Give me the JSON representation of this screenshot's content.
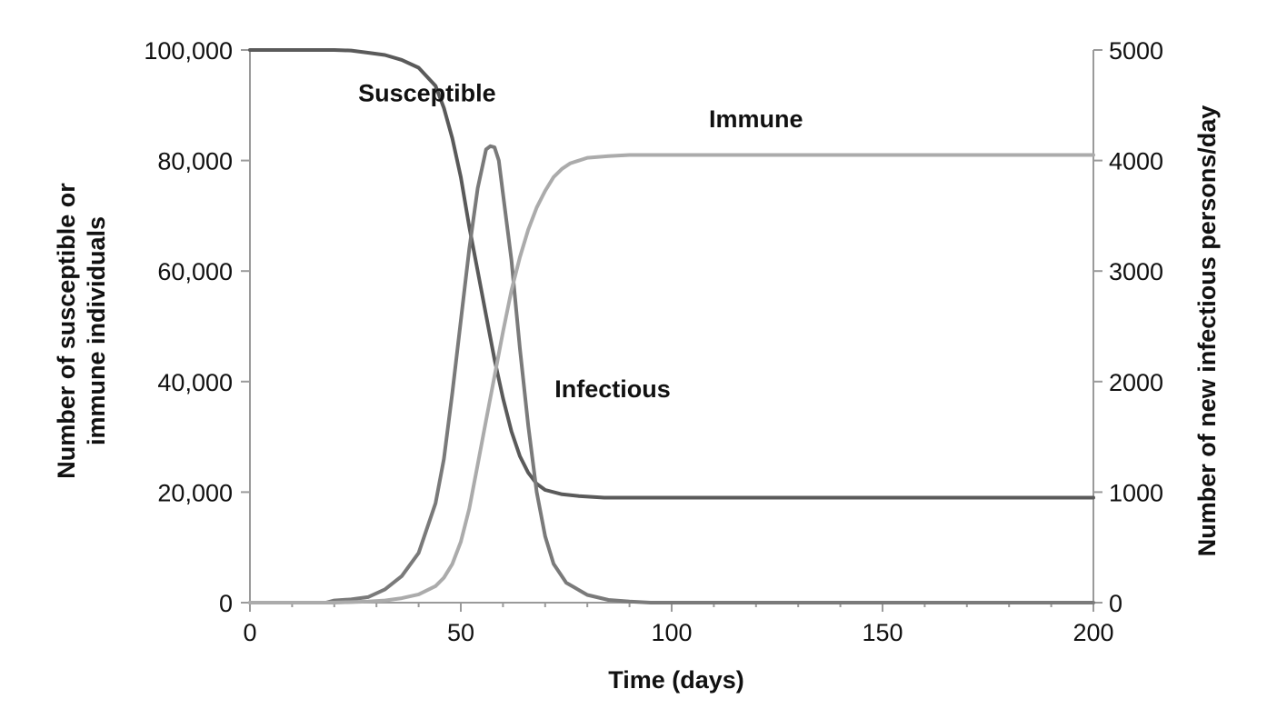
{
  "chart_data": {
    "type": "line",
    "xlabel": "Time (days)",
    "ylabel_left": [
      "Number of susceptible or",
      "immune individuals"
    ],
    "ylabel_right": "Number of new infectious persons/day",
    "xlim": [
      0,
      200
    ],
    "ylim_left": [
      0,
      100000
    ],
    "ylim_right": [
      0,
      5000
    ],
    "x_ticks": [
      0,
      50,
      100,
      150,
      200
    ],
    "x_tick_labels": [
      "0",
      "50",
      "100",
      "150",
      "200"
    ],
    "y_left_ticks": [
      0,
      20000,
      40000,
      60000,
      80000,
      100000
    ],
    "y_left_tick_labels": [
      "0",
      "20,000",
      "40,000",
      "60,000",
      "80,000",
      "100,000"
    ],
    "y_right_ticks": [
      0,
      1000,
      2000,
      3000,
      4000,
      5000
    ],
    "y_right_tick_labels": [
      "0",
      "1000",
      "2000",
      "3000",
      "4000",
      "5000"
    ],
    "grid": false,
    "series": [
      {
        "name": "Susceptible",
        "axis": "left",
        "color": "#5a5a5a",
        "points": [
          [
            0,
            100000
          ],
          [
            10,
            100000
          ],
          [
            20,
            100000
          ],
          [
            24,
            99900
          ],
          [
            28,
            99500
          ],
          [
            32,
            99100
          ],
          [
            36,
            98200
          ],
          [
            40,
            96800
          ],
          [
            44,
            93500
          ],
          [
            46,
            89500
          ],
          [
            48,
            84000
          ],
          [
            50,
            77000
          ],
          [
            52,
            68000
          ],
          [
            54,
            60000
          ],
          [
            56,
            52000
          ],
          [
            58,
            44000
          ],
          [
            60,
            37000
          ],
          [
            62,
            31000
          ],
          [
            64,
            26500
          ],
          [
            66,
            23500
          ],
          [
            68,
            21500
          ],
          [
            70,
            20400
          ],
          [
            74,
            19600
          ],
          [
            78,
            19300
          ],
          [
            84,
            19000
          ],
          [
            90,
            19000
          ],
          [
            120,
            19000
          ],
          [
            160,
            19000
          ],
          [
            200,
            19000
          ]
        ]
      },
      {
        "name": "Infectious",
        "axis": "right",
        "color": "#7a7a7a",
        "points": [
          [
            0,
            0
          ],
          [
            10,
            0
          ],
          [
            18,
            0
          ],
          [
            20,
            20
          ],
          [
            24,
            30
          ],
          [
            28,
            50
          ],
          [
            32,
            120
          ],
          [
            36,
            240
          ],
          [
            40,
            450
          ],
          [
            44,
            900
          ],
          [
            46,
            1300
          ],
          [
            48,
            1900
          ],
          [
            50,
            2550
          ],
          [
            52,
            3200
          ],
          [
            54,
            3750
          ],
          [
            56,
            4100
          ],
          [
            57,
            4130
          ],
          [
            58,
            4120
          ],
          [
            59,
            4000
          ],
          [
            60,
            3700
          ],
          [
            62,
            3100
          ],
          [
            64,
            2300
          ],
          [
            66,
            1600
          ],
          [
            68,
            1000
          ],
          [
            70,
            600
          ],
          [
            72,
            350
          ],
          [
            75,
            180
          ],
          [
            80,
            70
          ],
          [
            85,
            25
          ],
          [
            90,
            10
          ],
          [
            95,
            0
          ],
          [
            100,
            0
          ],
          [
            150,
            0
          ],
          [
            200,
            0
          ]
        ]
      },
      {
        "name": "Immune",
        "axis": "left",
        "color": "#ababab",
        "points": [
          [
            0,
            0
          ],
          [
            20,
            0
          ],
          [
            28,
            200
          ],
          [
            32,
            400
          ],
          [
            36,
            800
          ],
          [
            40,
            1500
          ],
          [
            44,
            3000
          ],
          [
            46,
            4500
          ],
          [
            48,
            7000
          ],
          [
            50,
            11000
          ],
          [
            52,
            17000
          ],
          [
            54,
            25000
          ],
          [
            56,
            33000
          ],
          [
            58,
            41000
          ],
          [
            60,
            49000
          ],
          [
            62,
            56500
          ],
          [
            64,
            62500
          ],
          [
            66,
            67500
          ],
          [
            68,
            71500
          ],
          [
            70,
            74500
          ],
          [
            72,
            77000
          ],
          [
            74,
            78500
          ],
          [
            76,
            79500
          ],
          [
            80,
            80500
          ],
          [
            85,
            80800
          ],
          [
            90,
            81000
          ],
          [
            120,
            81000
          ],
          [
            160,
            81000
          ],
          [
            200,
            81000
          ]
        ]
      }
    ],
    "annotations": [
      {
        "text": "Susceptible",
        "x": 42,
        "y": 90700,
        "axis": "left",
        "anchor": "middle"
      },
      {
        "text": "Immune",
        "x": 120,
        "y": 86000,
        "axis": "left",
        "anchor": "middle"
      },
      {
        "text": "Infectious",
        "x": 86,
        "y": 37200,
        "axis": "left",
        "anchor": "middle"
      }
    ]
  }
}
